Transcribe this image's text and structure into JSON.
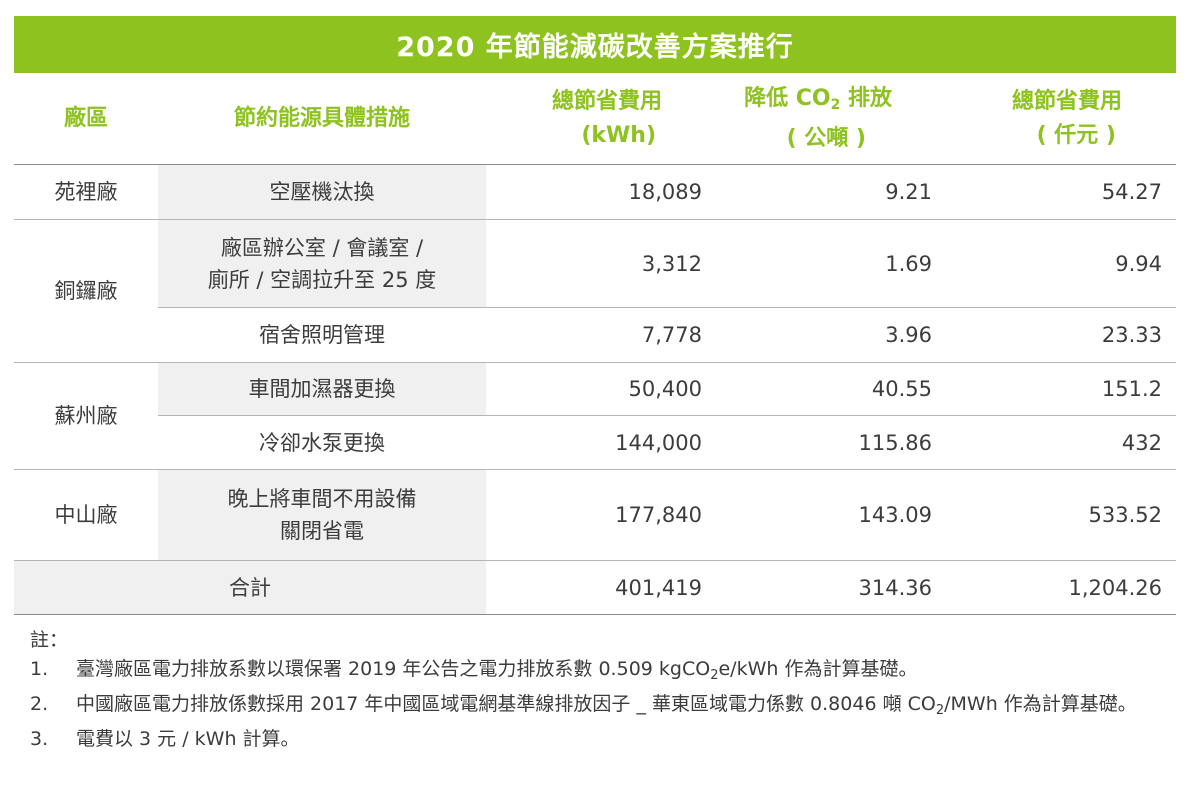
{
  "title": "2020 年節能減碳改善方案推行",
  "headers": {
    "plant": "廠區",
    "measure": "節約能源具體措施",
    "energy_line1": "總節省費用",
    "energy_line2": "(kWh)",
    "co2_pre": "降低 CO",
    "co2_sub": "2",
    "co2_post": " 排放",
    "co2_line2": "( 公噸 )",
    "cost_line1": "總節省費用",
    "cost_line2": "( 仟元 )"
  },
  "rows": [
    {
      "plant": "苑裡廠",
      "measure": "空壓機汰換",
      "energy": "18,089",
      "co2": "9.21",
      "cost": "54.27"
    },
    {
      "plant": "銅鑼廠",
      "measure_line1": "廠區辦公室 / 會議室 /",
      "measure_line2": "廁所 / 空調拉升至 25 度",
      "energy": "3,312",
      "co2": "1.69",
      "cost": "9.94"
    },
    {
      "measure": "宿舍照明管理",
      "energy": "7,778",
      "co2": "3.96",
      "cost": "23.33"
    },
    {
      "plant": "蘇州廠",
      "measure": "車間加濕器更換",
      "energy": "50,400",
      "co2": "40.55",
      "cost": "151.2"
    },
    {
      "measure": "冷卻水泵更換",
      "energy": "144,000",
      "co2": "115.86",
      "cost": "432"
    },
    {
      "plant": "中山廠",
      "measure_line1": "晚上將車間不用設備",
      "measure_line2": "關閉省電",
      "energy": "177,840",
      "co2": "143.09",
      "cost": "533.52"
    }
  ],
  "total": {
    "label": "合計",
    "energy": "401,419",
    "co2": "314.36",
    "cost": "1,204.26"
  },
  "notes": {
    "header": "註：",
    "items": [
      {
        "num": "1.",
        "pre": "臺灣廠區電力排放系數以環保署 2019 年公告之電力排放系數 0.509 kgCO",
        "sub": "2",
        "post": "e/kWh 作為計算基礎。"
      },
      {
        "num": "2.",
        "pre": "中國廠區電力排放係數採用 2017 年中國區域電網基準線排放因子 _ 華東區域電力係數 0.8046 噸 CO",
        "sub": "2",
        "post": "/MWh 作為計算基礎。"
      },
      {
        "num": "3.",
        "text": "電費以 3 元 / kWh 計算。"
      }
    ]
  }
}
